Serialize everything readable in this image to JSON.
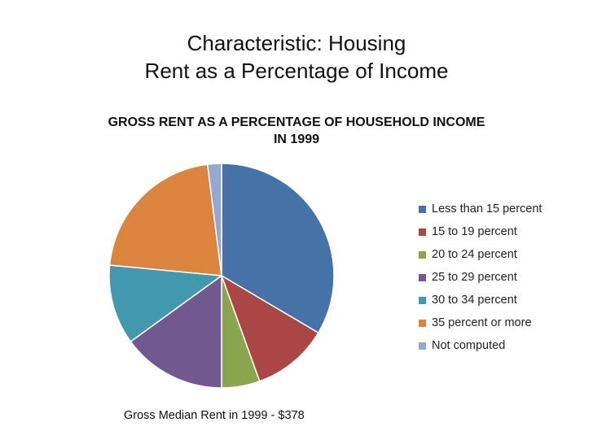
{
  "slide": {
    "title_line1": "Characteristic: Housing",
    "title_line2": "Rent as a Percentage of Income",
    "footnote": "Gross Median Rent in 1999 - $378"
  },
  "chart_data": {
    "type": "pie",
    "title_line1": "GROSS RENT AS A PERCENTAGE OF HOUSEHOLD INCOME",
    "title_line2": "IN 1999",
    "legend_position": "right",
    "slices": [
      {
        "label": "Less than 15 percent",
        "value": 33.5,
        "color": "#4572A7"
      },
      {
        "label": "15 to 19 percent",
        "value": 11.0,
        "color": "#AA4643"
      },
      {
        "label": "20 to 24 percent",
        "value": 5.5,
        "color": "#89A54E"
      },
      {
        "label": "25 to 29 percent",
        "value": 15.0,
        "color": "#71588F"
      },
      {
        "label": "30 to 34 percent",
        "value": 11.5,
        "color": "#4198AF"
      },
      {
        "label": "35 percent or more",
        "value": 21.5,
        "color": "#DB843D"
      },
      {
        "label": "Not computed",
        "value": 2.0,
        "color": "#93A9CF"
      }
    ]
  }
}
